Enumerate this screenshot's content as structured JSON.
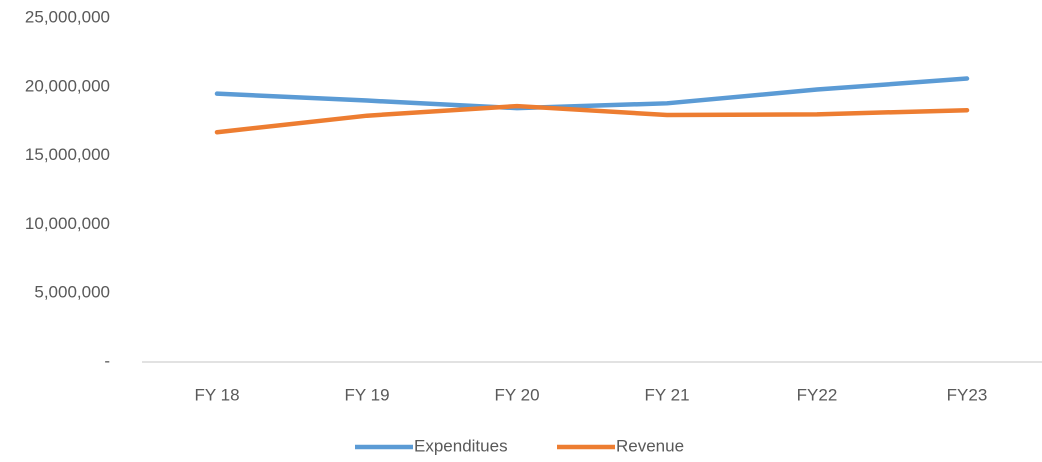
{
  "chart_data": {
    "type": "line",
    "categories": [
      "FY 18",
      "FY 19",
      "FY 20",
      "FY 21",
      "FY22",
      "FY23"
    ],
    "series": [
      {
        "name": "Expenditues",
        "color": "#5b9bd5",
        "values": [
          19500000,
          19000000,
          18450000,
          18800000,
          19800000,
          20600000
        ]
      },
      {
        "name": "Revenue",
        "color": "#ed7d31",
        "values": [
          16700000,
          17900000,
          18600000,
          17950000,
          18000000,
          18300000
        ]
      }
    ],
    "ylim": [
      0,
      25000000
    ],
    "yticks": [
      {
        "value": 0,
        "label": "-"
      },
      {
        "value": 5000000,
        "label": "5,000,000"
      },
      {
        "value": 10000000,
        "label": "10,000,000"
      },
      {
        "value": 15000000,
        "label": "15,000,000"
      },
      {
        "value": 20000000,
        "label": "20,000,000"
      },
      {
        "value": 25000000,
        "label": "25,000,000"
      }
    ],
    "grid": false,
    "legend": "bottom"
  }
}
